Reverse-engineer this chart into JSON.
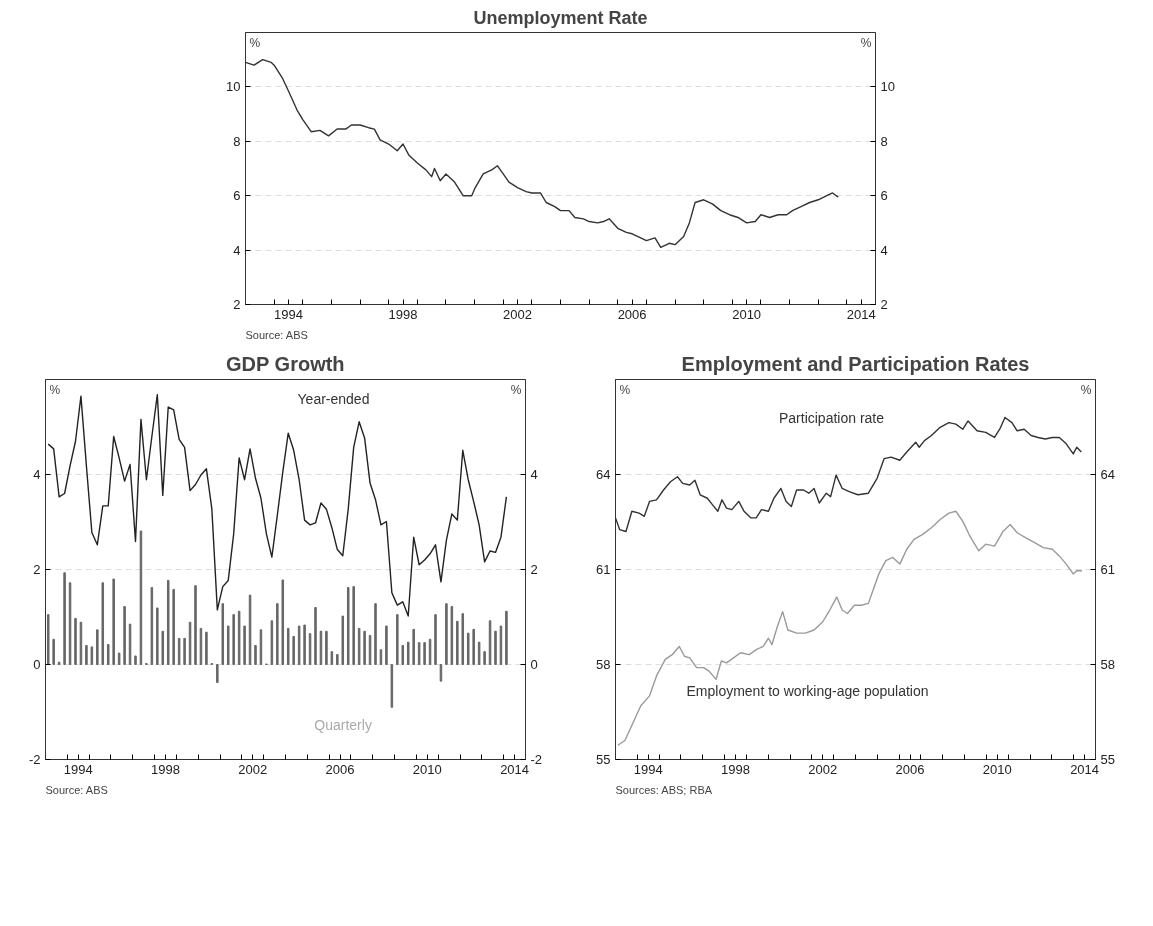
{
  "chart_data": [
    {
      "type": "line",
      "title": "Unemployment Rate",
      "ylabel": "%",
      "y2label": "%",
      "xlim": [
        1993,
        2015
      ],
      "ylim": [
        2,
        12
      ],
      "y2lim": [
        2,
        12
      ],
      "xticks": [
        {
          "value": 1994,
          "label": null
        },
        {
          "value": 1995,
          "label": null
        },
        {
          "value": 1996,
          "label": null
        },
        {
          "value": 1997,
          "label": null
        },
        {
          "value": 1998,
          "label": null
        },
        {
          "value": 1999,
          "label": null
        },
        {
          "value": 2000,
          "label": null
        },
        {
          "value": 2001,
          "label": null
        },
        {
          "value": 2002,
          "label": null
        },
        {
          "value": 2003,
          "label": null
        },
        {
          "value": 2004,
          "label": null
        },
        {
          "value": 2005,
          "label": null
        },
        {
          "value": 2006,
          "label": null
        },
        {
          "value": 2007,
          "label": null
        },
        {
          "value": 2008,
          "label": null
        },
        {
          "value": 2009,
          "label": null
        },
        {
          "value": 2010,
          "label": null
        },
        {
          "value": 2011,
          "label": null
        },
        {
          "value": 2012,
          "label": null
        },
        {
          "value": 2013,
          "label": null
        },
        {
          "value": 2014,
          "label": null
        },
        {
          "value": 1994.5,
          "label": "1994"
        },
        {
          "value": 1998.5,
          "label": "1998"
        },
        {
          "value": 2002.5,
          "label": "2002"
        },
        {
          "value": 2006.5,
          "label": "2006"
        },
        {
          "value": 2010.5,
          "label": "2010"
        },
        {
          "value": 2014.5,
          "label": "2014"
        }
      ],
      "yticks": [
        2,
        4,
        6,
        8,
        10
      ],
      "y2ticks": [
        2,
        4,
        6,
        8,
        10
      ],
      "grid": "y",
      "annotations": [
        "Source:    ABS"
      ],
      "series": [
        {
          "color": "#333333",
          "x": [
            1993.0,
            1993.3,
            1993.6,
            1993.9,
            1994.0,
            1994.3,
            1994.5,
            1994.8,
            1995.0,
            1995.3,
            1995.6,
            1995.9,
            1996.2,
            1996.5,
            1996.7,
            1997.0,
            1997.3,
            1997.5,
            1997.7,
            1998.0,
            1998.3,
            1998.5,
            1998.7,
            1999.0,
            1999.3,
            1999.5,
            1999.6,
            1999.8,
            2000.0,
            2000.3,
            2000.6,
            2000.9,
            2001.0,
            2001.3,
            2001.6,
            2001.8,
            2002.0,
            2002.2,
            2002.5,
            2002.8,
            2003.0,
            2003.3,
            2003.5,
            2003.8,
            2004.0,
            2004.3,
            2004.5,
            2004.8,
            2005.0,
            2005.3,
            2005.5,
            2005.7,
            2006.0,
            2006.3,
            2006.5,
            2006.8,
            2007.0,
            2007.3,
            2007.5,
            2007.8,
            2008.0,
            2008.3,
            2008.5,
            2008.7,
            2009.0,
            2009.3,
            2009.6,
            2009.9,
            2010.2,
            2010.5,
            2010.8,
            2011.0,
            2011.3,
            2011.6,
            2011.9,
            2012.1,
            2012.4,
            2012.7,
            2013.0,
            2013.3,
            2013.5,
            2013.7
          ],
          "values": [
            10.9,
            10.8,
            11.0,
            10.9,
            10.8,
            10.3,
            9.85,
            9.15,
            8.8,
            8.35,
            8.4,
            8.2,
            8.45,
            8.45,
            8.6,
            8.6,
            8.5,
            8.45,
            8.05,
            7.9,
            7.65,
            7.9,
            7.5,
            7.2,
            6.95,
            6.7,
            7.0,
            6.55,
            6.8,
            6.5,
            6.0,
            6.0,
            6.25,
            6.8,
            6.95,
            7.1,
            6.8,
            6.5,
            6.3,
            6.15,
            6.1,
            6.1,
            5.75,
            5.6,
            5.45,
            5.45,
            5.2,
            5.15,
            5.05,
            5.0,
            5.05,
            5.15,
            4.8,
            4.65,
            4.6,
            4.45,
            4.35,
            4.45,
            4.1,
            4.25,
            4.2,
            4.5,
            5.0,
            5.75,
            5.85,
            5.7,
            5.45,
            5.3,
            5.2,
            5.0,
            5.05,
            5.3,
            5.2,
            5.3,
            5.3,
            5.45,
            5.6,
            5.75,
            5.85,
            6.0,
            6.1,
            5.95
          ]
        }
      ]
    },
    {
      "type": "line",
      "title": "GDP Growth",
      "ylabel": "%",
      "y2label": "%",
      "xlim": [
        1993,
        2015
      ],
      "ylim": [
        -2,
        6
      ],
      "y2lim": [
        -2,
        6
      ],
      "xticks": [
        {
          "value": 1994,
          "label": null
        },
        {
          "value": 1995,
          "label": null
        },
        {
          "value": 1996,
          "label": null
        },
        {
          "value": 1997,
          "label": null
        },
        {
          "value": 1998,
          "label": null
        },
        {
          "value": 1999,
          "label": null
        },
        {
          "value": 2000,
          "label": null
        },
        {
          "value": 2001,
          "label": null
        },
        {
          "value": 2002,
          "label": null
        },
        {
          "value": 2003,
          "label": null
        },
        {
          "value": 2004,
          "label": null
        },
        {
          "value": 2005,
          "label": null
        },
        {
          "value": 2006,
          "label": null
        },
        {
          "value": 2007,
          "label": null
        },
        {
          "value": 2008,
          "label": null
        },
        {
          "value": 2009,
          "label": null
        },
        {
          "value": 2010,
          "label": null
        },
        {
          "value": 2011,
          "label": null
        },
        {
          "value": 2012,
          "label": null
        },
        {
          "value": 2013,
          "label": null
        },
        {
          "value": 2014,
          "label": null
        },
        {
          "value": 1994.5,
          "label": "1994"
        },
        {
          "value": 1998.5,
          "label": "1998"
        },
        {
          "value": 2002.5,
          "label": "2002"
        },
        {
          "value": 2006.5,
          "label": "2006"
        },
        {
          "value": 2010.5,
          "label": "2010"
        },
        {
          "value": 2014.5,
          "label": "2014"
        }
      ],
      "yticks": [
        -2,
        0,
        2,
        4
      ],
      "y2ticks": [
        -2,
        0,
        2,
        4
      ],
      "grid": "y",
      "annotations": [
        "Source:    ABS"
      ],
      "x": [
        1993.125,
        1993.375,
        1993.625,
        1993.875,
        1994.125,
        1994.375,
        1994.625,
        1994.875,
        1995.125,
        1995.375,
        1995.625,
        1995.875,
        1996.125,
        1996.375,
        1996.625,
        1996.875,
        1997.125,
        1997.375,
        1997.625,
        1997.875,
        1998.125,
        1998.375,
        1998.625,
        1998.875,
        1999.125,
        1999.375,
        1999.625,
        1999.875,
        2000.125,
        2000.375,
        2000.625,
        2000.875,
        2001.125,
        2001.375,
        2001.625,
        2001.875,
        2002.125,
        2002.375,
        2002.625,
        2002.875,
        2003.125,
        2003.375,
        2003.625,
        2003.875,
        2004.125,
        2004.375,
        2004.625,
        2004.875,
        2005.125,
        2005.375,
        2005.625,
        2005.875,
        2006.125,
        2006.375,
        2006.625,
        2006.875,
        2007.125,
        2007.375,
        2007.625,
        2007.875,
        2008.125,
        2008.375,
        2008.625,
        2008.875,
        2009.125,
        2009.375,
        2009.625,
        2009.875,
        2010.125,
        2010.375,
        2010.625,
        2010.875,
        2011.125,
        2011.375,
        2011.625,
        2011.875,
        2012.125,
        2012.375,
        2012.625,
        2012.875,
        2013.125,
        2013.375,
        2013.625,
        2013.875,
        2014.125
      ],
      "series": [
        {
          "name": "Year-ended",
          "type": "line",
          "color": "#222222",
          "values": [
            4.64,
            4.54,
            3.53,
            3.6,
            4.18,
            4.7,
            5.65,
            4.18,
            2.78,
            2.52,
            3.34,
            3.34,
            4.8,
            4.35,
            3.86,
            4.21,
            2.59,
            5.16,
            3.89,
            4.8,
            5.68,
            3.56,
            5.42,
            5.36,
            4.74,
            4.57,
            3.66,
            3.79,
            3.99,
            4.12,
            3.27,
            1.15,
            1.64,
            1.77,
            2.75,
            4.35,
            3.89,
            4.54,
            3.92,
            3.5,
            2.75,
            2.26,
            3.14,
            4.05,
            4.87,
            4.51,
            3.89,
            3.04,
            2.94,
            2.98,
            3.4,
            3.27,
            2.88,
            2.42,
            2.29,
            3.27,
            4.57,
            5.11,
            4.77,
            3.82,
            3.47,
            2.94,
            3.01,
            1.51,
            1.25,
            1.32,
            1.02,
            2.68,
            2.1,
            2.2,
            2.33,
            2.52,
            1.74,
            2.62,
            3.17,
            3.04,
            4.51,
            3.89,
            3.43,
            2.94,
            2.16,
            2.39,
            2.36,
            2.68,
            3.53
          ]
        },
        {
          "name": "Quarterly",
          "type": "bar",
          "color": "#666666",
          "values": [
            1.05,
            0.53,
            0.05,
            1.93,
            1.72,
            0.97,
            0.89,
            0.4,
            0.37,
            0.73,
            1.72,
            0.42,
            1.8,
            0.24,
            1.22,
            0.85,
            0.18,
            2.81,
            0.02,
            1.62,
            1.19,
            0.7,
            1.77,
            1.58,
            0.55,
            0.55,
            0.89,
            1.66,
            0.76,
            0.68,
            0.02,
            -0.38,
            1.28,
            0.81,
            1.05,
            1.12,
            0.81,
            1.46,
            0.4,
            0.73,
            0.01,
            0.92,
            1.28,
            1.78,
            0.76,
            0.59,
            0.81,
            0.83,
            0.65,
            1.2,
            0.7,
            0.7,
            0.27,
            0.21,
            1.02,
            1.62,
            1.64,
            0.76,
            0.7,
            0.61,
            1.28,
            0.31,
            0.81,
            -0.9,
            1.05,
            0.4,
            0.47,
            0.74,
            0.46,
            0.46,
            0.53,
            1.05,
            -0.35,
            1.28,
            1.22,
            0.91,
            1.07,
            0.66,
            0.74,
            0.47,
            0.27,
            0.92,
            0.7,
            0.81,
            1.12
          ]
        }
      ]
    },
    {
      "type": "line",
      "title": "Employment and Participation Rates",
      "ylabel": "%",
      "y2label": "%",
      "xlim": [
        1993,
        2015
      ],
      "ylim": [
        55,
        67
      ],
      "y2lim": [
        55,
        67
      ],
      "xticks": [
        {
          "value": 1994,
          "label": null
        },
        {
          "value": 1995,
          "label": null
        },
        {
          "value": 1996,
          "label": null
        },
        {
          "value": 1997,
          "label": null
        },
        {
          "value": 1998,
          "label": null
        },
        {
          "value": 1999,
          "label": null
        },
        {
          "value": 2000,
          "label": null
        },
        {
          "value": 2001,
          "label": null
        },
        {
          "value": 2002,
          "label": null
        },
        {
          "value": 2003,
          "label": null
        },
        {
          "value": 2004,
          "label": null
        },
        {
          "value": 2005,
          "label": null
        },
        {
          "value": 2006,
          "label": null
        },
        {
          "value": 2007,
          "label": null
        },
        {
          "value": 2008,
          "label": null
        },
        {
          "value": 2009,
          "label": null
        },
        {
          "value": 2010,
          "label": null
        },
        {
          "value": 2011,
          "label": null
        },
        {
          "value": 2012,
          "label": null
        },
        {
          "value": 2013,
          "label": null
        },
        {
          "value": 2014,
          "label": null
        },
        {
          "value": 1994.5,
          "label": "1994"
        },
        {
          "value": 1998.5,
          "label": "1998"
        },
        {
          "value": 2002.5,
          "label": "2002"
        },
        {
          "value": 2006.5,
          "label": "2006"
        },
        {
          "value": 2010.5,
          "label": "2010"
        },
        {
          "value": 2014.5,
          "label": "2014"
        }
      ],
      "yticks": [
        55,
        58,
        61,
        64
      ],
      "y2ticks": [
        55,
        58,
        61,
        64
      ],
      "grid": "y",
      "annotations": [
        "Sources:  ABS; RBA"
      ],
      "series": [
        {
          "name": "Participation rate",
          "color": "#333333",
          "x": [
            1993.0,
            1993.19,
            1993.48,
            1993.75,
            1994.08,
            1994.32,
            1994.56,
            1994.88,
            1995.2,
            1995.52,
            1995.84,
            1996.08,
            1996.4,
            1996.64,
            1996.88,
            1997.21,
            1997.45,
            1997.69,
            1997.88,
            1998.09,
            1998.33,
            1998.65,
            1998.89,
            1999.21,
            1999.45,
            1999.69,
            2000.01,
            2000.26,
            2000.58,
            2000.82,
            2001.06,
            2001.3,
            2001.62,
            2001.86,
            2002.1,
            2002.34,
            2002.66,
            2002.86,
            2003.11,
            2003.39,
            2003.71,
            2004.11,
            2004.59,
            2004.99,
            2005.31,
            2005.63,
            2006.03,
            2006.35,
            2006.76,
            2006.92,
            2007.16,
            2007.48,
            2007.88,
            2008.28,
            2008.6,
            2008.92,
            2009.16,
            2009.57,
            2009.97,
            2010.37,
            2010.61,
            2010.85,
            2011.17,
            2011.41,
            2011.73,
            2012.05,
            2012.37,
            2012.7,
            2013.02,
            2013.34,
            2013.66,
            2013.98,
            2014.14,
            2014.35
          ],
          "values": [
            62.63,
            62.26,
            62.2,
            62.84,
            62.78,
            62.68,
            63.15,
            63.2,
            63.51,
            63.77,
            63.93,
            63.72,
            63.67,
            63.82,
            63.36,
            63.25,
            63.04,
            62.84,
            63.2,
            62.94,
            62.89,
            63.15,
            62.84,
            62.63,
            62.63,
            62.89,
            62.84,
            63.25,
            63.56,
            63.15,
            62.99,
            63.51,
            63.51,
            63.41,
            63.56,
            63.1,
            63.41,
            63.3,
            63.98,
            63.56,
            63.46,
            63.36,
            63.41,
            63.88,
            64.5,
            64.55,
            64.45,
            64.71,
            65.02,
            64.86,
            65.07,
            65.23,
            65.49,
            65.64,
            65.59,
            65.43,
            65.69,
            65.38,
            65.33,
            65.17,
            65.43,
            65.8,
            65.64,
            65.38,
            65.43,
            65.23,
            65.17,
            65.12,
            65.17,
            65.17,
            64.97,
            64.65,
            64.86,
            64.71
          ]
        },
        {
          "name": "Employment to working-age population",
          "color": "#9a9a9a",
          "x": [
            1993.11,
            1993.43,
            1993.83,
            1994.16,
            1994.56,
            1994.88,
            1995.28,
            1995.6,
            1995.92,
            1996.16,
            1996.4,
            1996.72,
            1997.04,
            1997.29,
            1997.61,
            1997.85,
            1998.09,
            1998.41,
            1998.73,
            1999.13,
            1999.45,
            1999.77,
            2000.01,
            2000.17,
            2000.42,
            2000.66,
            2000.9,
            2001.3,
            2001.7,
            2002.1,
            2002.5,
            2002.82,
            2003.14,
            2003.39,
            2003.63,
            2003.95,
            2004.27,
            2004.59,
            2004.75,
            2005.07,
            2005.39,
            2005.71,
            2006.03,
            2006.35,
            2006.68,
            2007.08,
            2007.48,
            2007.88,
            2008.28,
            2008.6,
            2008.92,
            2009.24,
            2009.65,
            2009.97,
            2010.37,
            2010.77,
            2011.09,
            2011.41,
            2011.81,
            2012.21,
            2012.61,
            2013.02,
            2013.34,
            2013.66,
            2013.98,
            2014.14,
            2014.38
          ],
          "values": [
            55.45,
            55.6,
            56.2,
            56.7,
            57.01,
            57.64,
            58.16,
            58.31,
            58.57,
            58.26,
            58.21,
            57.9,
            57.9,
            57.79,
            57.53,
            58.11,
            58.05,
            58.21,
            58.37,
            58.31,
            58.47,
            58.57,
            58.83,
            58.63,
            59.2,
            59.67,
            59.09,
            58.99,
            58.99,
            59.09,
            59.35,
            59.72,
            60.13,
            59.72,
            59.61,
            59.87,
            59.87,
            59.93,
            60.24,
            60.86,
            61.28,
            61.38,
            61.17,
            61.64,
            61.95,
            62.11,
            62.32,
            62.58,
            62.78,
            62.84,
            62.52,
            62.06,
            61.59,
            61.8,
            61.74,
            62.21,
            62.42,
            62.16,
            62.0,
            61.85,
            61.69,
            61.64,
            61.43,
            61.17,
            60.86,
            60.96,
            60.96
          ]
        }
      ]
    }
  ]
}
